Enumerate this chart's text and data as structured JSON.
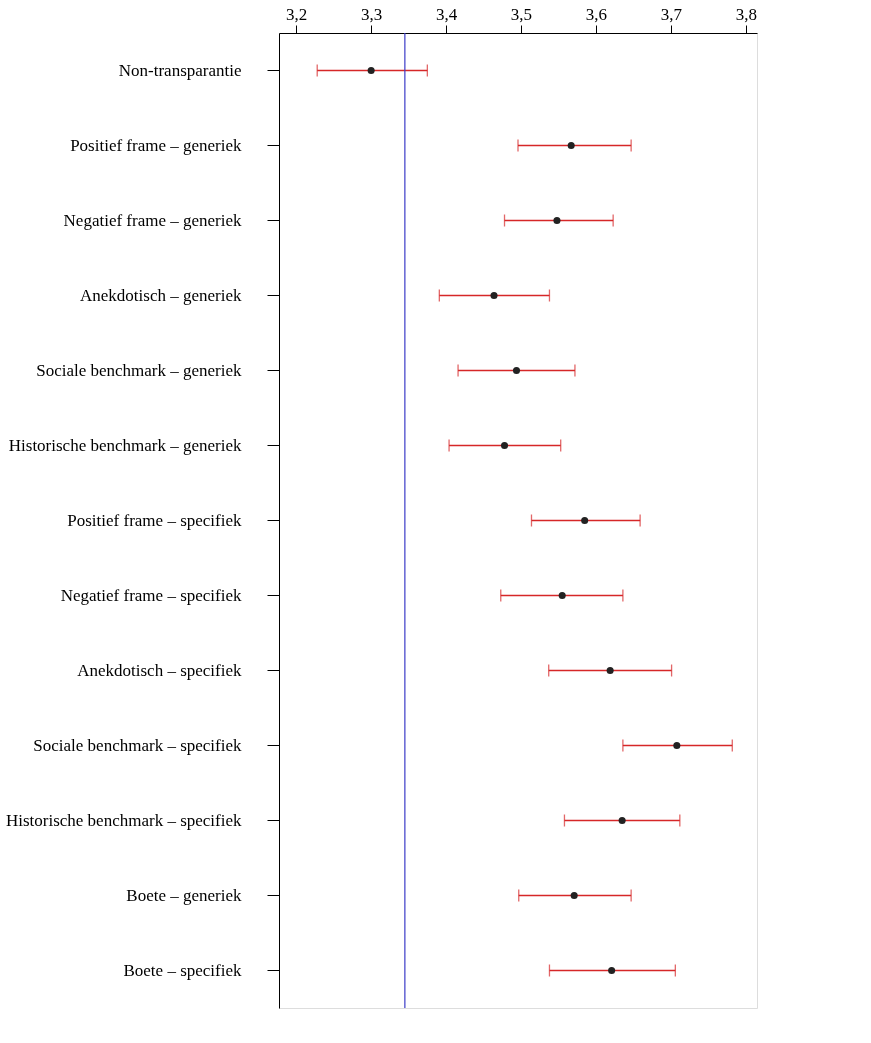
{
  "chart_data": {
    "type": "scatter",
    "orientation": "horizontal",
    "categories": [
      "Non-transparantie",
      "Positief frame – generiek",
      "Negatief frame – generiek",
      "Anekdotisch – generiek",
      "Sociale benchmark – generiek",
      "Historische benchmark – generiek",
      "Positief frame – specifiek",
      "Negatief frame – specifiek",
      "Anekdotisch – specifiek",
      "Sociale benchmark – specifiek",
      "Historische benchmark – specifiek",
      "Boete – generiek",
      "Boete – specifiek"
    ],
    "series": [
      {
        "color": "#222222",
        "values": [
          3.3,
          3.567,
          3.548,
          3.464,
          3.494,
          3.478,
          3.585,
          3.555,
          3.619,
          3.708,
          3.635,
          3.571,
          3.621
        ],
        "errors": [
          [
            3.228,
            3.375
          ],
          [
            3.496,
            3.647
          ],
          [
            3.478,
            3.623
          ],
          [
            3.391,
            3.538
          ],
          [
            3.416,
            3.572
          ],
          [
            3.404,
            3.553
          ],
          [
            3.514,
            3.659
          ],
          [
            3.473,
            3.636
          ],
          [
            3.537,
            3.701
          ],
          [
            3.636,
            3.782
          ],
          [
            3.558,
            3.712
          ],
          [
            3.497,
            3.647
          ],
          [
            3.538,
            3.706
          ]
        ]
      }
    ],
    "xlim": [
      3.177,
      3.815
    ],
    "xticks": [
      {
        "value": 3.2,
        "label": "3,2"
      },
      {
        "value": 3.3,
        "label": "3,3"
      },
      {
        "value": 3.4,
        "label": "3,4"
      },
      {
        "value": 3.5,
        "label": "3,5"
      },
      {
        "value": 3.6,
        "label": "3,6"
      },
      {
        "value": 3.7,
        "label": "3,7"
      },
      {
        "value": 3.8,
        "label": "3,8"
      }
    ],
    "ref_lines": [
      {
        "axis": "x",
        "value": 3.345,
        "color": "#3b3bc8"
      }
    ],
    "marker": "circle",
    "grid": false
  }
}
